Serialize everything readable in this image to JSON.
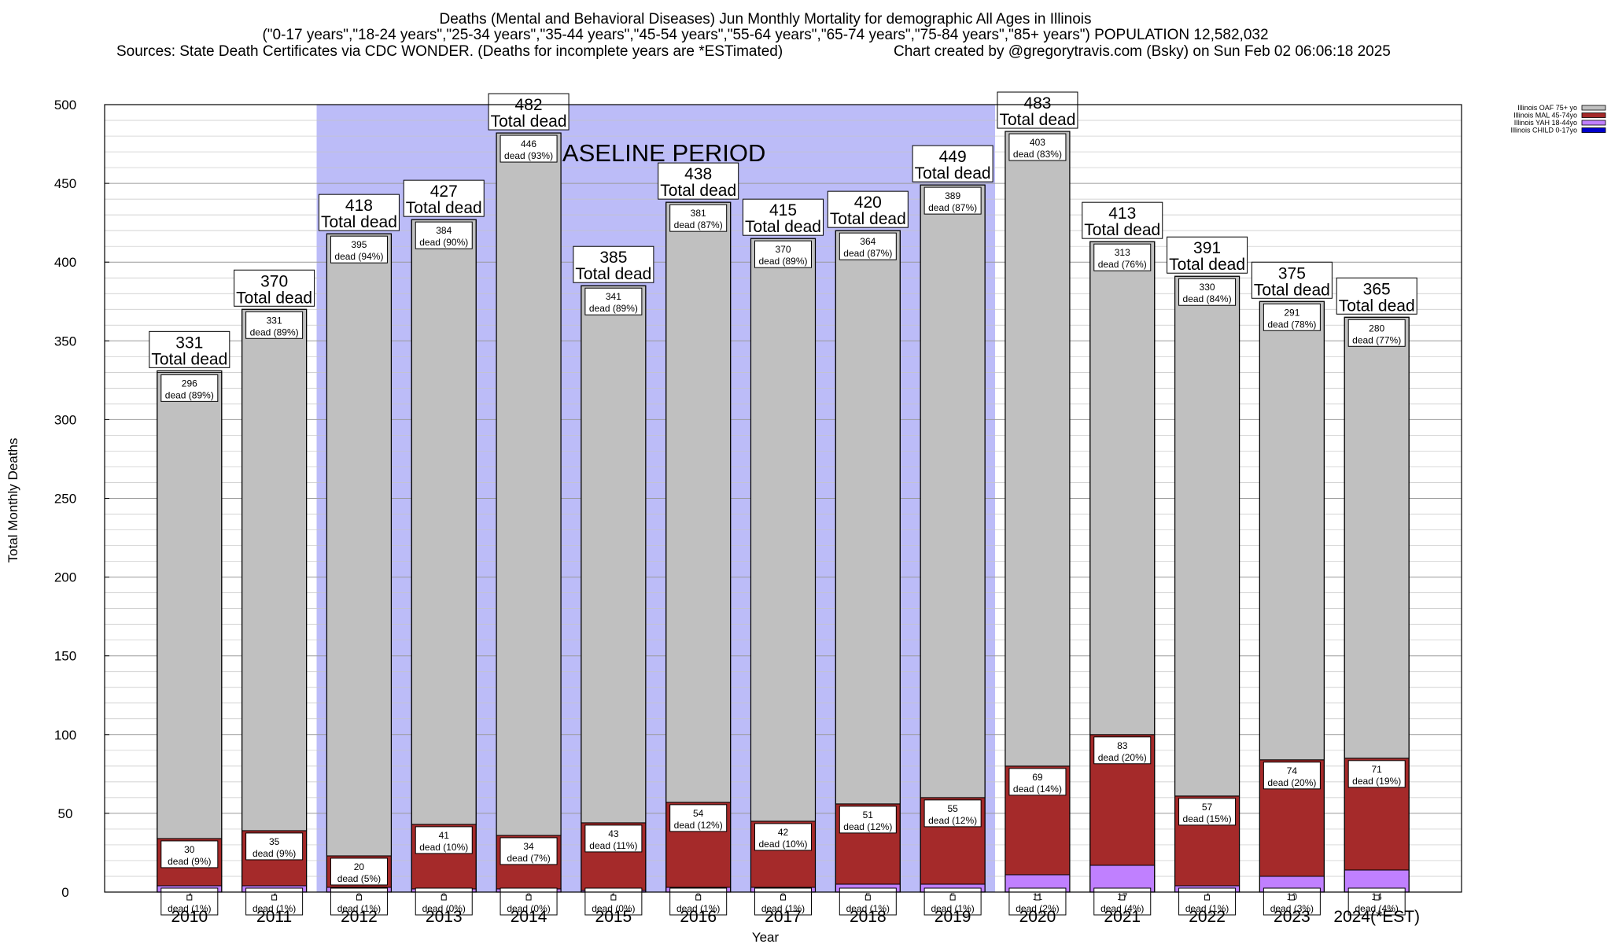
{
  "title_lines": [
    "Deaths (Mental and Behavioral Diseases) Jun Monthly Mortality for demographic All Ages in Illinois",
    "(\"0-17 years\",\"18-24 years\",\"25-34 years\",\"35-44 years\",\"45-54 years\",\"55-64 years\",\"65-74 years\",\"75-84 years\",\"85+ years\") POPULATION 12,582,032"
  ],
  "sources_text": "Sources: State Death Certificates via CDC WONDER. (Deaths for incomplete years are *ESTimated)",
  "credit_text": "Chart created by @gregorytravis.com (Bsky) on Sun Feb 02 06:06:18 2025",
  "baseline_label": "BASELINE PERIOD",
  "total_word": "Total dead",
  "dead_word": "dead",
  "chart_data": {
    "type": "bar",
    "stacked": true,
    "xlabel": "Year",
    "ylabel": "Total Monthly Deaths",
    "ylim": [
      0,
      500
    ],
    "yticks": [
      0,
      50,
      100,
      150,
      200,
      250,
      300,
      350,
      400,
      450,
      500
    ],
    "grid": true,
    "legend_position": "top-right",
    "baseline_period": [
      "2012",
      "2019"
    ],
    "categories": [
      "2010",
      "2011",
      "2012",
      "2013",
      "2014",
      "2015",
      "2016",
      "2017",
      "2018",
      "2019",
      "2020",
      "2021",
      "2022",
      "2023",
      "2024(*EST)"
    ],
    "series": [
      {
        "name": "Illinois CHILD 0-17yo",
        "color": "#0000cc",
        "values": [
          0,
          0,
          0,
          0,
          0,
          0,
          0,
          0,
          0,
          0,
          0,
          0,
          0,
          0,
          0
        ],
        "pct": [
          "",
          "",
          "",
          "",
          "",
          "",
          "",
          "",
          "",
          "",
          "",
          "",
          "",
          "",
          ""
        ]
      },
      {
        "name": "Illinois YAH 18-44yo",
        "color": "#c080ff",
        "values": [
          4,
          4,
          3,
          2,
          2,
          1,
          3,
          3,
          5,
          5,
          11,
          17,
          4,
          10,
          14
        ],
        "pct": [
          "1%",
          "1%",
          "1%",
          "0%",
          "0%",
          "0%",
          "1%",
          "1%",
          "1%",
          "1%",
          "2%",
          "4%",
          "1%",
          "3%",
          "4%"
        ]
      },
      {
        "name": "Illinois MAL 45-74yo",
        "color": "#a52a2a",
        "values": [
          30,
          35,
          20,
          41,
          34,
          43,
          54,
          42,
          51,
          55,
          69,
          83,
          57,
          74,
          71
        ],
        "pct": [
          "9%",
          "9%",
          "5%",
          "10%",
          "7%",
          "11%",
          "12%",
          "10%",
          "12%",
          "12%",
          "14%",
          "20%",
          "15%",
          "20%",
          "19%"
        ]
      },
      {
        "name": "Illinois OAF 75+ yo",
        "color": "#c0c0c0",
        "values": [
          296,
          331,
          395,
          384,
          446,
          341,
          381,
          370,
          364,
          389,
          403,
          313,
          330,
          291,
          280
        ],
        "pct": [
          "89%",
          "89%",
          "94%",
          "90%",
          "93%",
          "89%",
          "87%",
          "89%",
          "87%",
          "87%",
          "83%",
          "76%",
          "84%",
          "78%",
          "77%"
        ]
      }
    ],
    "totals": [
      331,
      370,
      418,
      427,
      482,
      385,
      438,
      415,
      420,
      449,
      483,
      413,
      391,
      375,
      365
    ]
  }
}
